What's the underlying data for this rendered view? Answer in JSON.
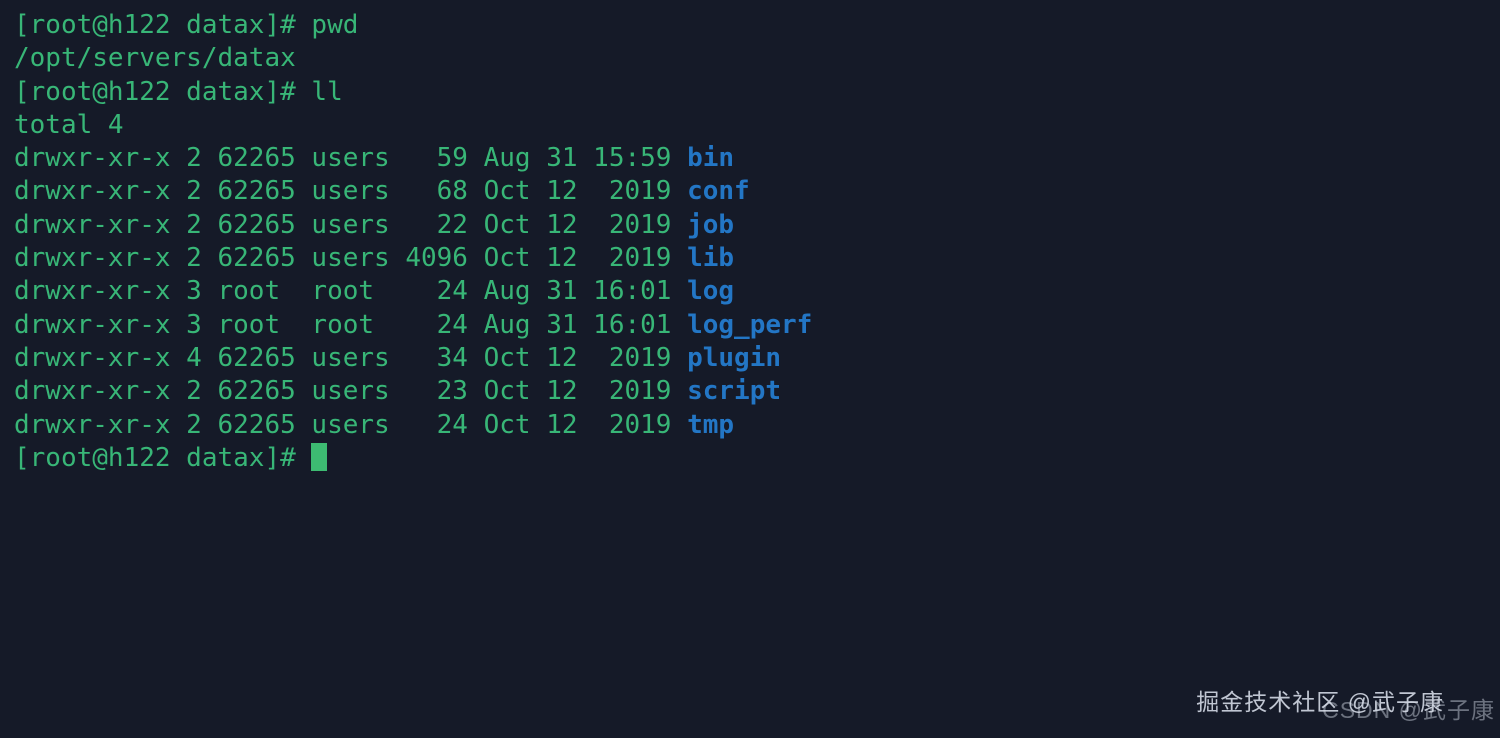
{
  "terminal": {
    "colors": {
      "background": "#151a28",
      "text": "#38b677",
      "directory": "#2376c5",
      "cursor": "#3dbb72"
    },
    "lines": [
      {
        "text": "[root@h122 datax]# pwd"
      },
      {
        "text": "/opt/servers/datax"
      },
      {
        "text": "[root@h122 datax]# ll"
      },
      {
        "text": "total 4"
      },
      {
        "meta": "drwxr-xr-x 2 62265 users   59 Aug 31 15:59 ",
        "dir": "bin"
      },
      {
        "meta": "drwxr-xr-x 2 62265 users   68 Oct 12  2019 ",
        "dir": "conf"
      },
      {
        "meta": "drwxr-xr-x 2 62265 users   22 Oct 12  2019 ",
        "dir": "job"
      },
      {
        "meta": "drwxr-xr-x 2 62265 users 4096 Oct 12  2019 ",
        "dir": "lib"
      },
      {
        "meta": "drwxr-xr-x 3 root  root    24 Aug 31 16:01 ",
        "dir": "log"
      },
      {
        "meta": "drwxr-xr-x 3 root  root    24 Aug 31 16:01 ",
        "dir": "log_perf"
      },
      {
        "meta": "drwxr-xr-x 4 62265 users   34 Oct 12  2019 ",
        "dir": "plugin"
      },
      {
        "meta": "drwxr-xr-x 2 62265 users   23 Oct 12  2019 ",
        "dir": "script"
      },
      {
        "meta": "drwxr-xr-x 2 62265 users   24 Oct 12  2019 ",
        "dir": "tmp"
      },
      {
        "prompt": "[root@h122 datax]# "
      }
    ]
  },
  "watermarks": {
    "juejin": "掘金技术社区 @武子康",
    "csdn": "CSDN @武子康"
  }
}
